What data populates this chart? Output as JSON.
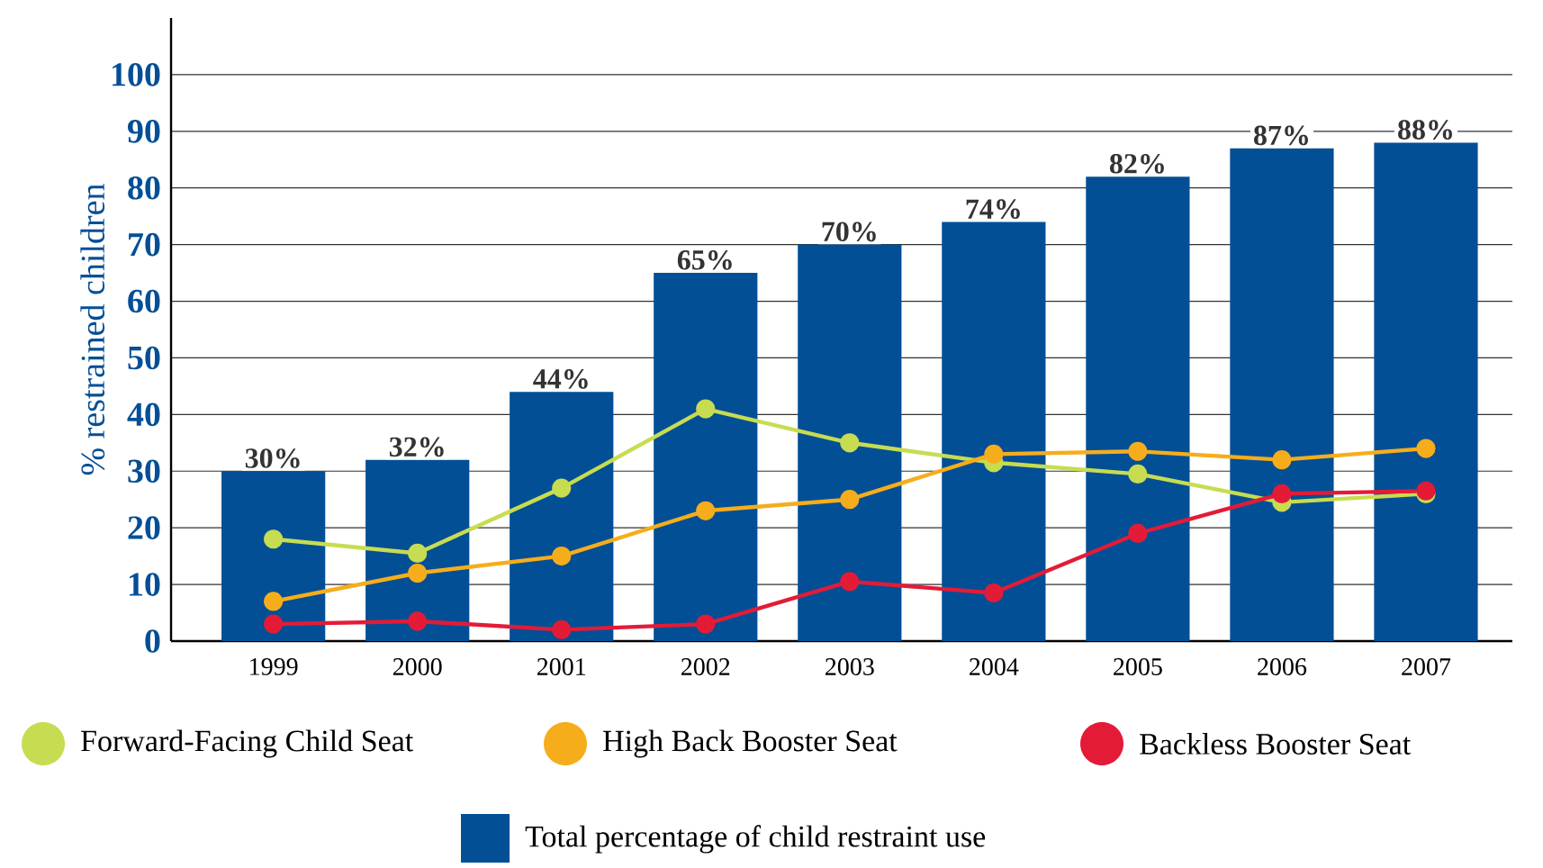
{
  "chart_data": {
    "type": "bar",
    "ylabel": "% restrained children",
    "categories": [
      "1999",
      "2000",
      "2001",
      "2002",
      "2003",
      "2004",
      "2005",
      "2006",
      "2007"
    ],
    "ylim": [
      0,
      110
    ],
    "yticks": [
      0,
      10,
      20,
      30,
      40,
      50,
      60,
      70,
      80,
      90,
      100
    ],
    "grid": "y",
    "legend": "bottom",
    "marker": "circle",
    "line_style": "solid",
    "series": [
      {
        "name": "Forward-Facing Child Seat",
        "type": "line",
        "color": "#c7dc50",
        "values": [
          18,
          15.5,
          27,
          41,
          35,
          31.5,
          29.5,
          24.5,
          26
        ]
      },
      {
        "name": "High Back Booster Seat",
        "type": "line",
        "color": "#f6ad1b",
        "values": [
          7,
          12,
          15,
          23,
          25,
          33,
          33.5,
          32,
          34
        ]
      },
      {
        "name": "Backless Booster Seat",
        "type": "line",
        "color": "#e31b37",
        "values": [
          3,
          3.5,
          2,
          3,
          10.5,
          8.5,
          19,
          26,
          26.5
        ]
      },
      {
        "name": "Total percentage of child restraint use",
        "color": "#034f96",
        "values": [
          30,
          32,
          44,
          65,
          70,
          74,
          82,
          87,
          88
        ],
        "value_labels": [
          "30%",
          "32%",
          "44%",
          "65%",
          "70%",
          "74%",
          "82%",
          "87%",
          "88%"
        ]
      }
    ]
  }
}
